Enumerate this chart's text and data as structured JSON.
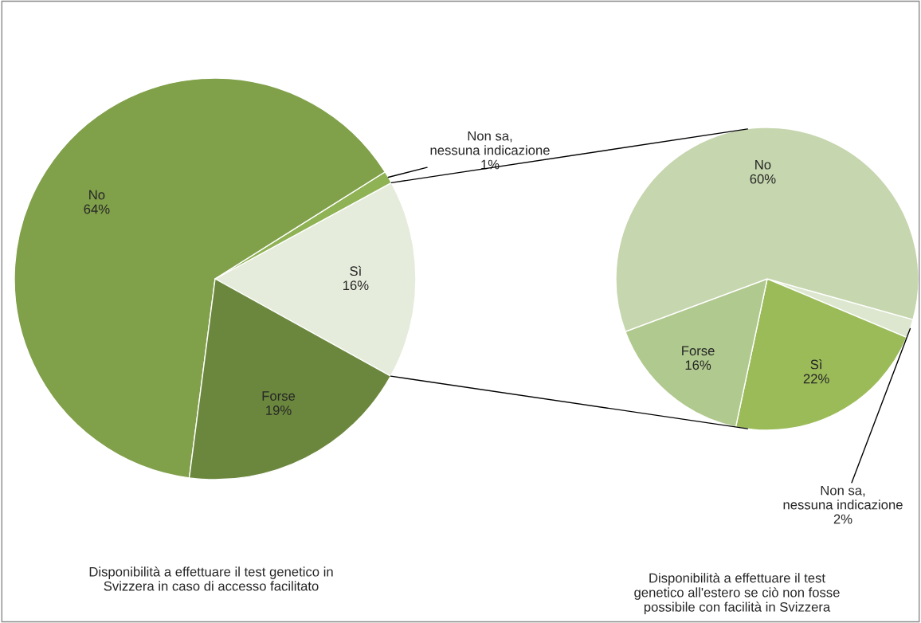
{
  "chart_data": [
    {
      "type": "pie",
      "title": "Disponibilità a effettuare il test genetico in\nSvizzera in caso di accesso facilitato",
      "categories": [
        "Sì",
        "Non sa,\nnessuna indicazione",
        "No",
        "Forse"
      ],
      "values": [
        16,
        1,
        64,
        19
      ],
      "value_labels": [
        "16%",
        "1%",
        "64%",
        "19%"
      ],
      "colors": [
        "#e6ecdc",
        "#8fb255",
        "#80a04a",
        "#6b873d"
      ]
    },
    {
      "type": "pie",
      "title": "Disponibilità a effettuare il test\ngenetico all'estero se ciò non fosse\npossibile con facilità in Svizzera",
      "categories": [
        "Non sa,\nnessuna indicazione",
        "Sì",
        "Forse",
        "No"
      ],
      "values": [
        2,
        22,
        16,
        60
      ],
      "value_labels": [
        "2%",
        "22%",
        "16%",
        "60%"
      ],
      "colors": [
        "#dde7cf",
        "#9bbb59",
        "#b0c98e",
        "#c6d6ae"
      ]
    }
  ]
}
